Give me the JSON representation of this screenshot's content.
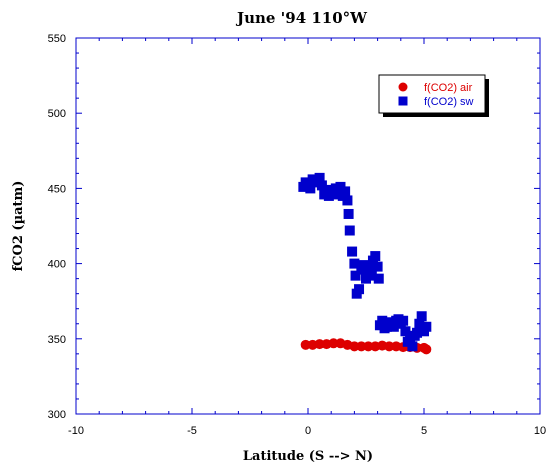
{
  "chart_data": {
    "type": "scatter",
    "title": "June '94 110°W",
    "xlabel": "Latitude (S --> N)",
    "ylabel": "fCO2 (µatm)",
    "xlim": [
      -10,
      10
    ],
    "ylim": [
      300,
      550
    ],
    "xticks": [
      -10,
      -5,
      0,
      5,
      10
    ],
    "yticks": [
      300,
      350,
      400,
      450,
      500,
      550
    ],
    "grid": false,
    "legend_position": "top-right",
    "colors": {
      "axis": "#0000cc",
      "air": "#dd0000",
      "sw": "#0000cc"
    },
    "series": [
      {
        "name": "f(CO2) air",
        "marker": "circle",
        "color": "#dd0000",
        "x": [
          -0.1,
          0.2,
          0.5,
          0.8,
          1.1,
          1.4,
          1.7,
          2.0,
          2.3,
          2.6,
          2.9,
          3.2,
          3.5,
          3.8,
          4.1,
          4.4,
          4.7,
          5.0,
          5.1
        ],
        "y": [
          346,
          346,
          346.5,
          346.5,
          347,
          347,
          346,
          345,
          345,
          345,
          345,
          345.5,
          345,
          345,
          344.5,
          344.5,
          344,
          344,
          343
        ]
      },
      {
        "name": "f(CO2) sw",
        "marker": "square",
        "color": "#0000cc",
        "x": [
          -0.2,
          -0.1,
          0.0,
          0.1,
          0.2,
          0.3,
          0.4,
          0.5,
          0.6,
          0.7,
          0.8,
          0.9,
          1.0,
          1.1,
          1.2,
          1.3,
          1.4,
          1.5,
          1.6,
          1.7,
          1.75,
          1.8,
          1.9,
          2.0,
          2.05,
          2.1,
          2.2,
          2.3,
          2.4,
          2.5,
          2.6,
          2.7,
          2.75,
          2.8,
          2.9,
          3.0,
          3.05,
          3.1,
          3.2,
          3.3,
          3.4,
          3.5,
          3.6,
          3.7,
          3.8,
          3.9,
          4.0,
          4.1,
          4.2,
          4.3,
          4.4,
          4.5,
          4.6,
          4.7,
          4.8,
          4.9,
          5.0,
          5.1
        ],
        "y": [
          451,
          454,
          453,
          450,
          456,
          454,
          455,
          457,
          452,
          446,
          448,
          445,
          449,
          447,
          450,
          446,
          451,
          445,
          448,
          442,
          433,
          422,
          408,
          400,
          392,
          380,
          383,
          396,
          399,
          390,
          393,
          397,
          392,
          402,
          405,
          398,
          390,
          359,
          362,
          357,
          358,
          360,
          361,
          358,
          362,
          363,
          360,
          362,
          355,
          348,
          350,
          345,
          352,
          354,
          360,
          365,
          355,
          358
        ]
      }
    ]
  }
}
